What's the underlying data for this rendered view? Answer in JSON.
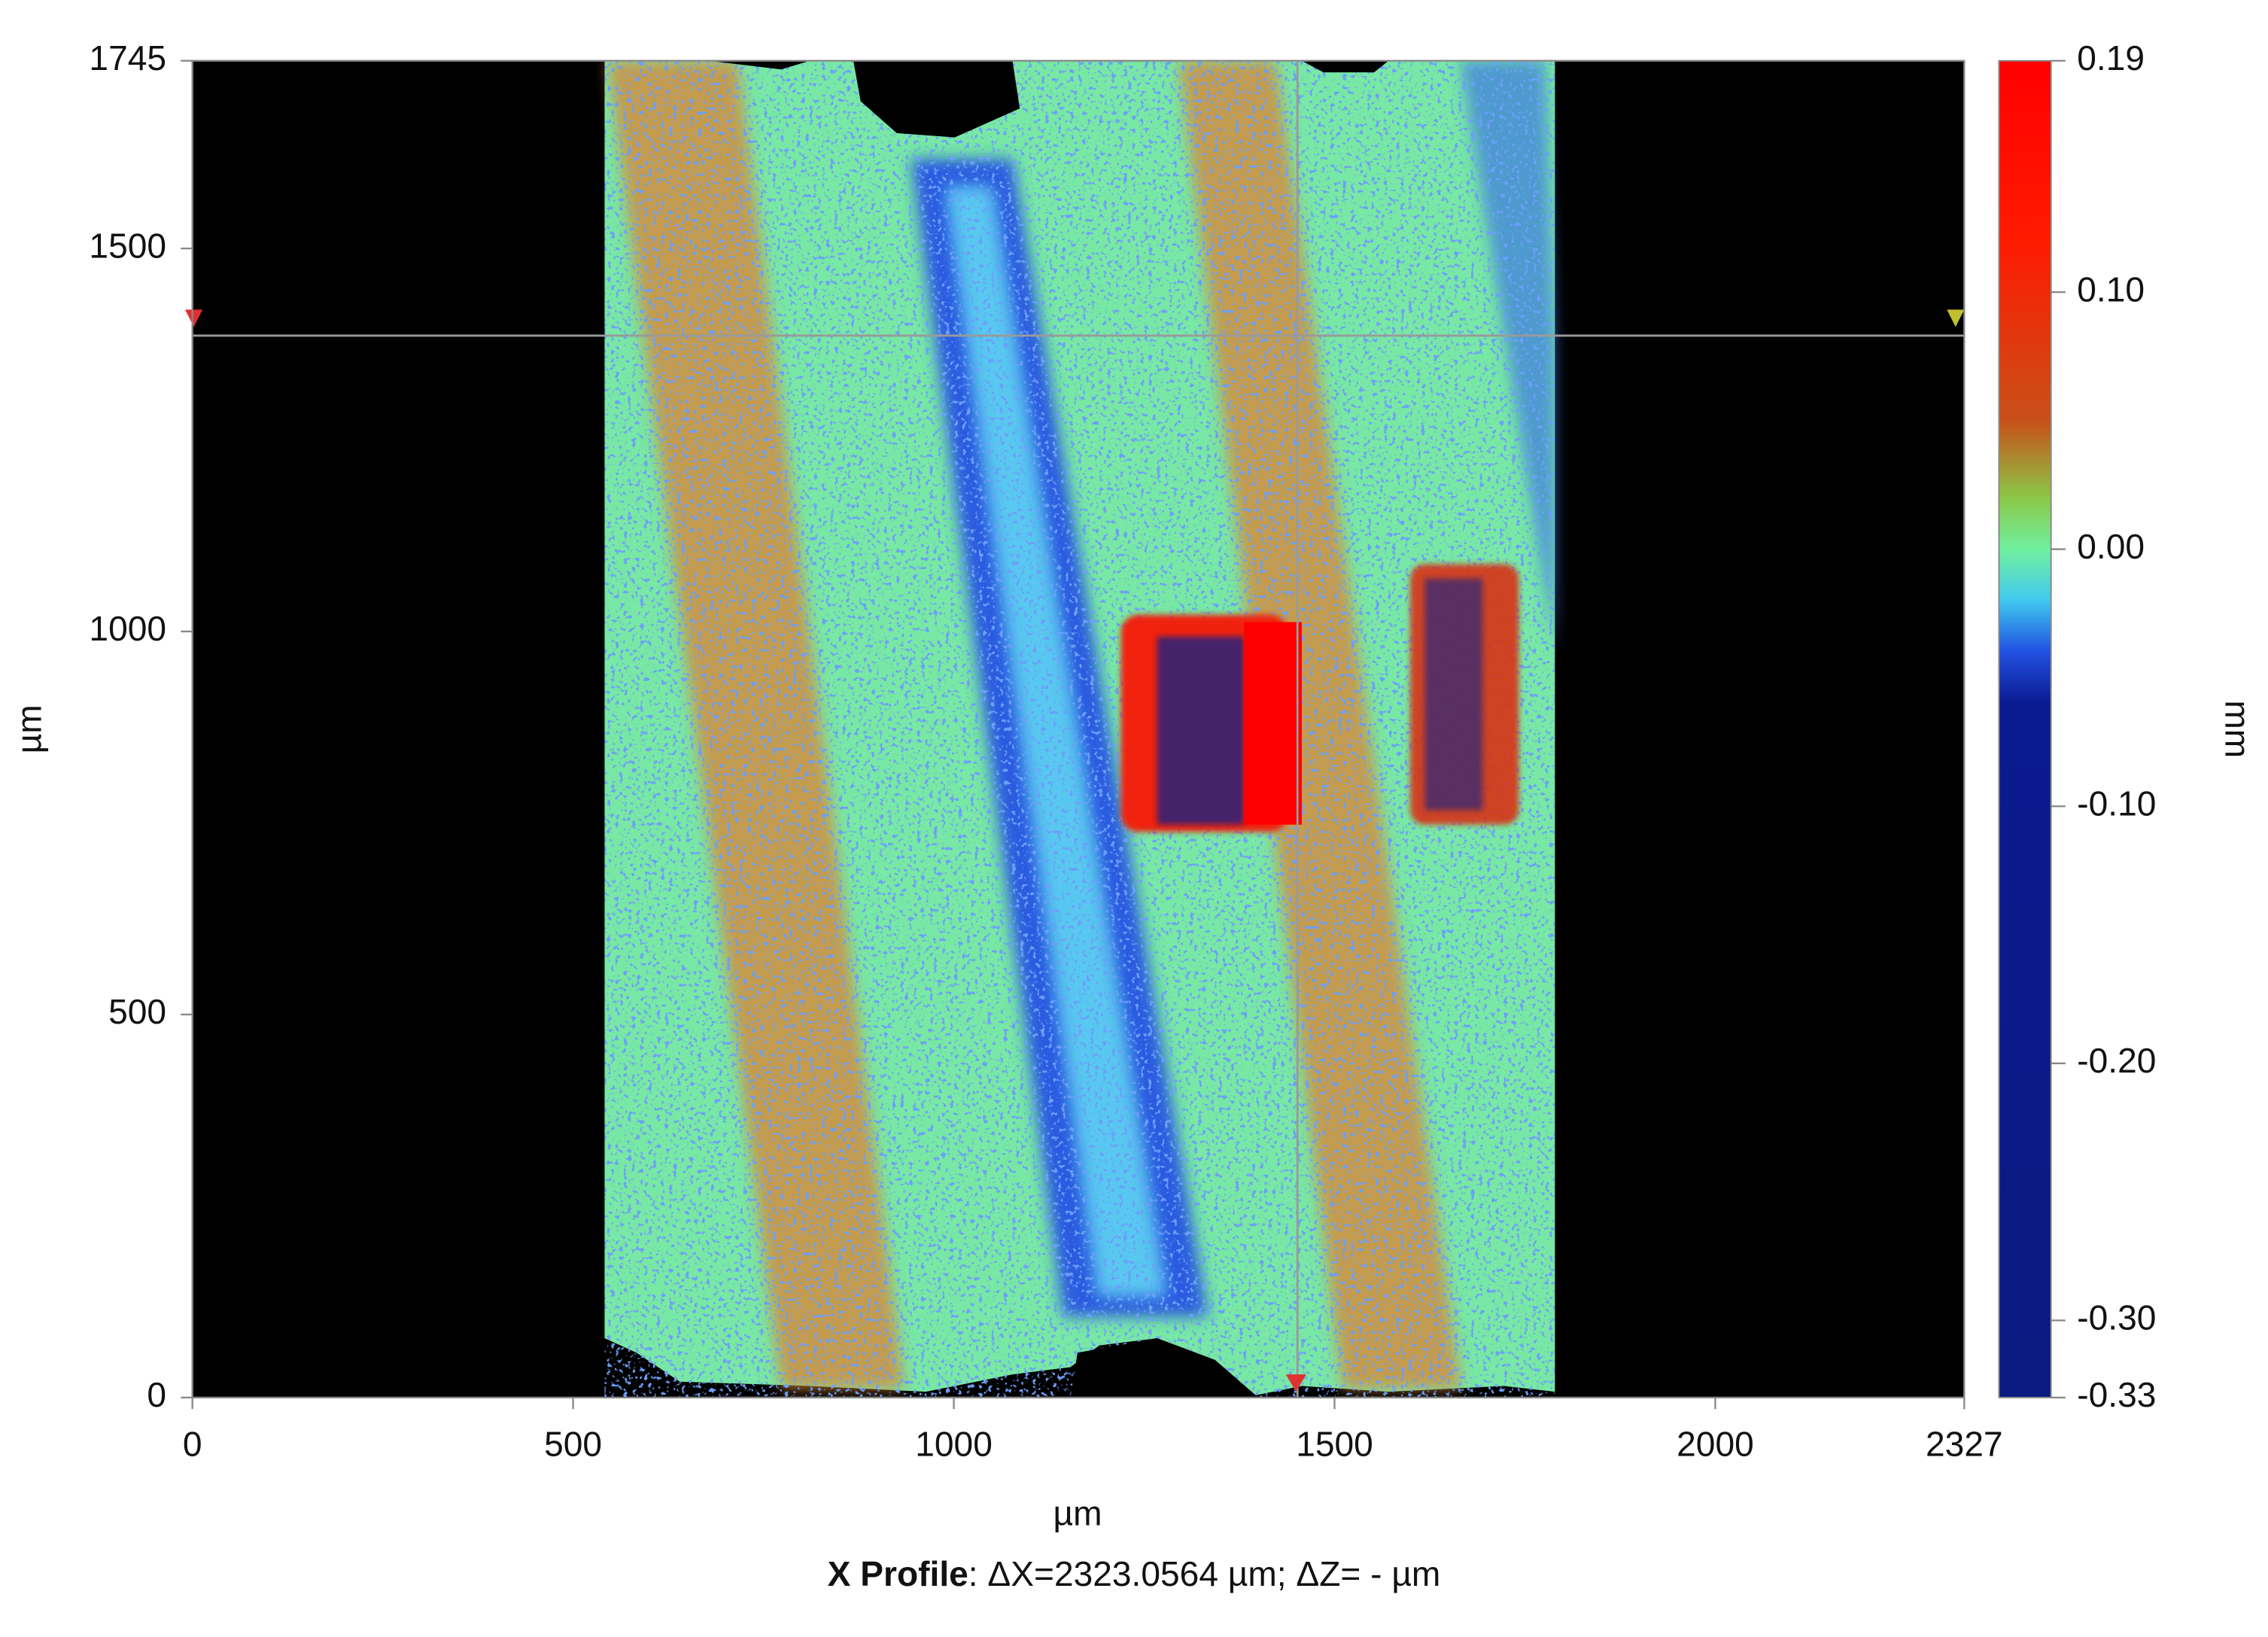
{
  "chart_data": {
    "type": "heatmap",
    "xlabel": "µm",
    "ylabel": "µm",
    "xlim": [
      0,
      2327
    ],
    "ylim": [
      0,
      1745
    ],
    "xticks": [
      0,
      500,
      1000,
      1500,
      2000,
      2327
    ],
    "yticks": [
      0,
      500,
      1000,
      1500,
      1745
    ],
    "colorbar": {
      "label": "mm",
      "lim": [
        -0.33,
        0.19
      ],
      "ticks": [
        {
          "value": 0.19,
          "label": "0.19"
        },
        {
          "value": 0.1,
          "label": "0.10"
        },
        {
          "value": 0,
          "label": "0.00"
        },
        {
          "value": -0.1,
          "label": "-0.10"
        },
        {
          "value": -0.2,
          "label": "-0.20"
        },
        {
          "value": -0.3,
          "label": "-0.30"
        },
        {
          "value": -0.33,
          "label": "-0.33"
        }
      ],
      "colorscale": [
        [
          0.19,
          "#ff0000"
        ],
        [
          0.12,
          "#ff1a00"
        ],
        [
          0.05,
          "#c8501a"
        ],
        [
          0.02,
          "#8cc848"
        ],
        [
          0,
          "#70f0a0"
        ],
        [
          -0.02,
          "#40c8f0"
        ],
        [
          -0.04,
          "#2050e0"
        ],
        [
          -0.06,
          "#0a1a90"
        ],
        [
          -0.33,
          "#0a1a80"
        ]
      ]
    },
    "caption_label": "X Profile",
    "caption_text": ": ΔX=2323.0564 µm; ΔZ= -  µm"
  }
}
